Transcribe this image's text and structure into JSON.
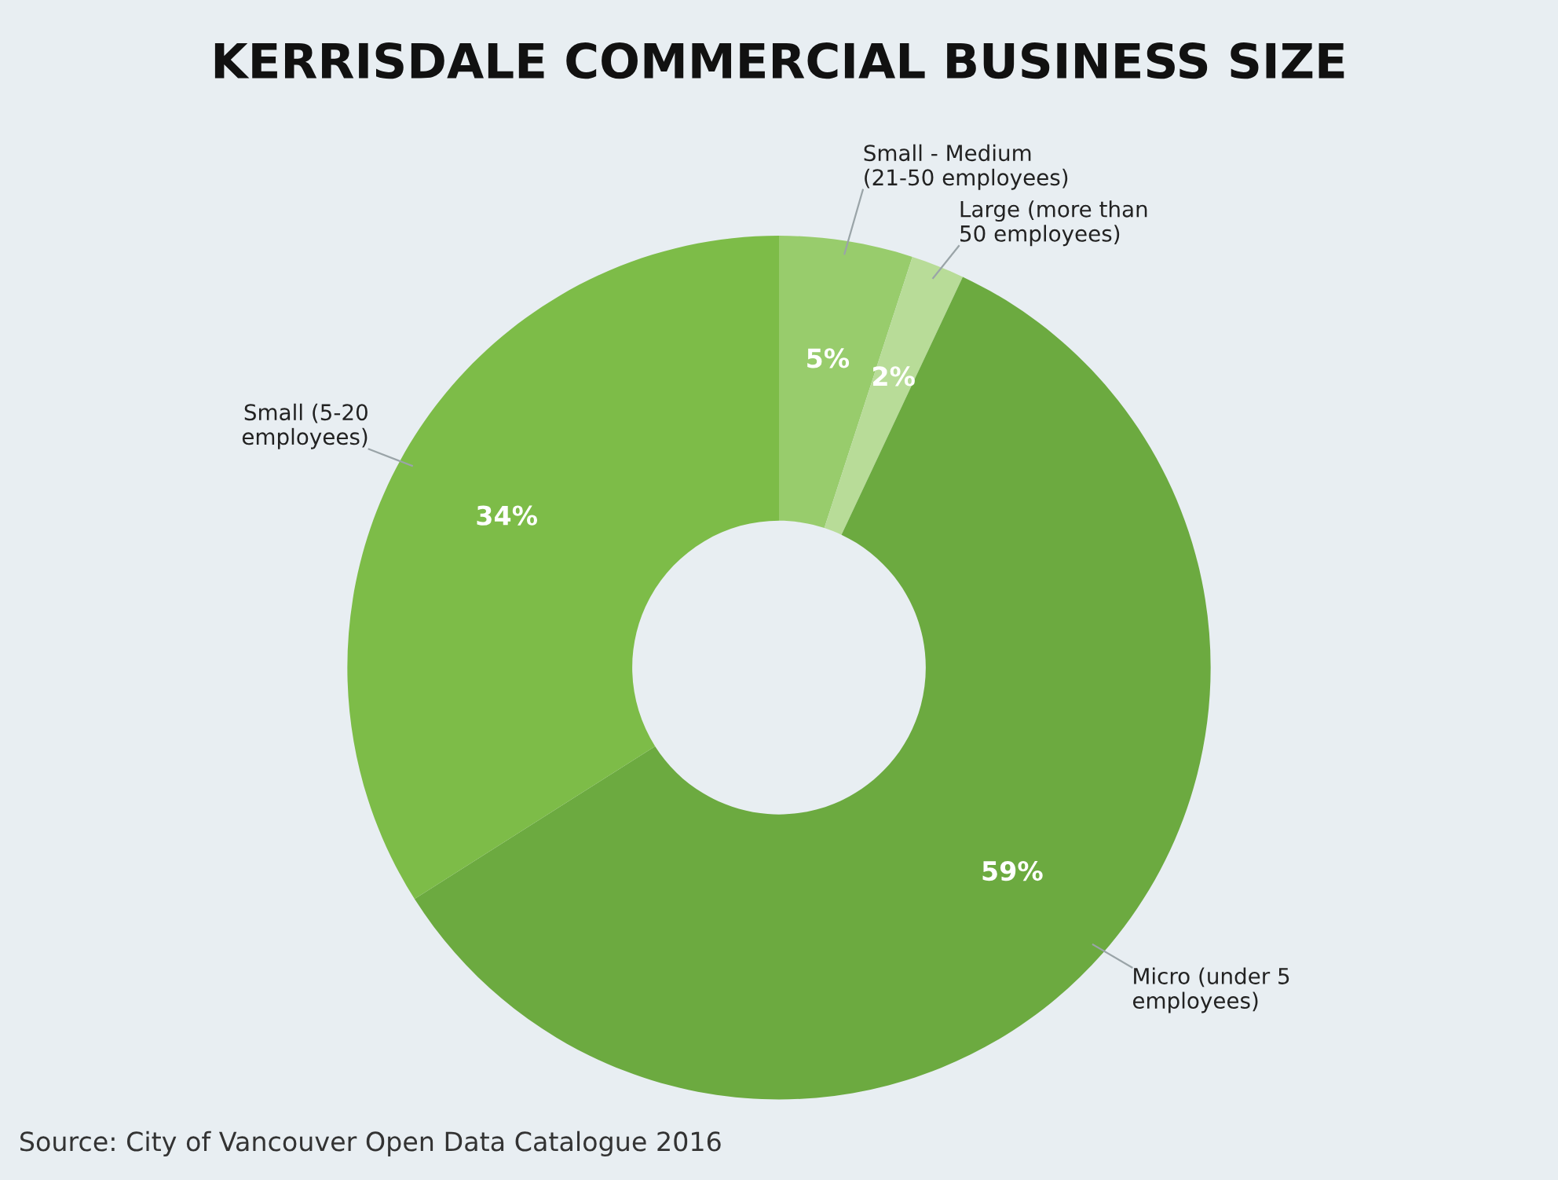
{
  "chart_data": {
    "type": "donut",
    "title": "KERRISDALE COMMERCIAL BUSINESS SIZE",
    "categories": [
      "Small - Medium\n(21-50 employees)",
      "Large (more than\n50 employees)",
      "Micro (under 5\nemployees)",
      "Small (5-20\nemployees)"
    ],
    "values": [
      5,
      2,
      59,
      34
    ],
    "value_labels": [
      "5%",
      "2%",
      "59%",
      "34%"
    ],
    "colors": [
      "#98cc6c",
      "#b8dc98",
      "#6caa40",
      "#7dbc48"
    ],
    "annotations": [
      "Source: City of Vancouver Open Data Catalogue 2016"
    ]
  }
}
